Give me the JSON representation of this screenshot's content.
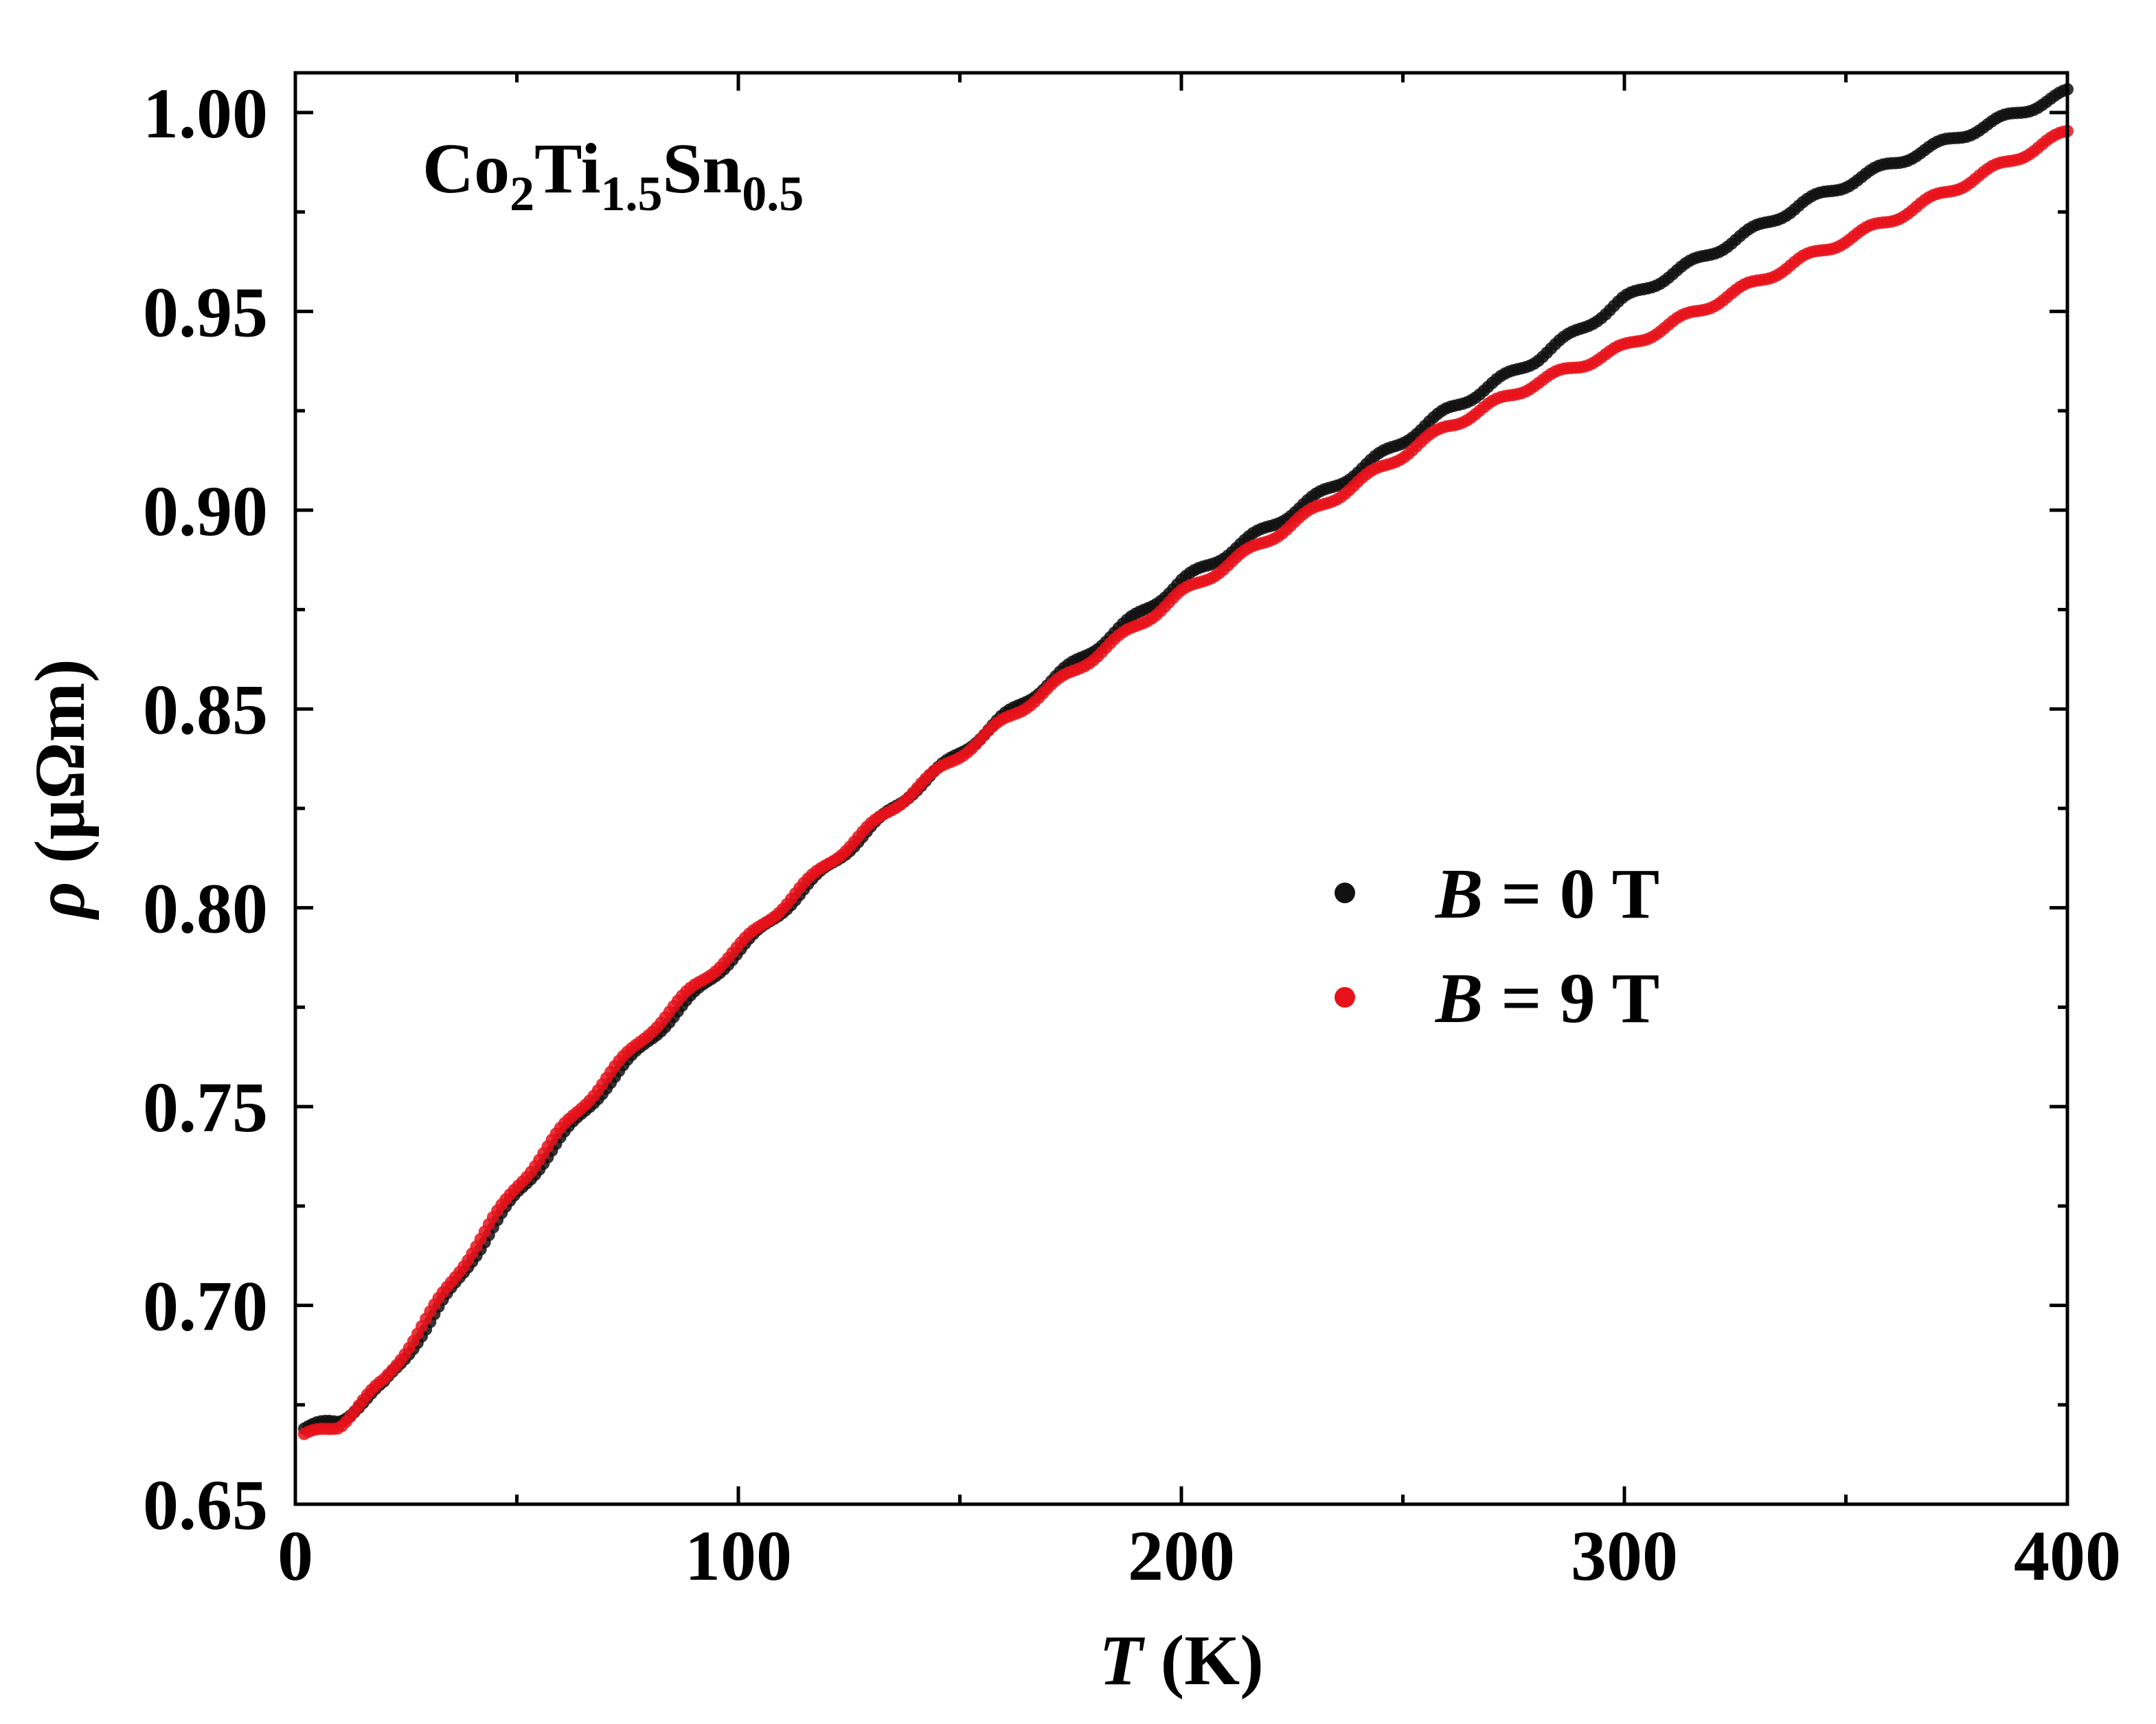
{
  "chart_data": {
    "type": "scatter",
    "title": "",
    "annotation": {
      "base": "Co",
      "sub1": "2",
      "el2": "Ti",
      "sub2": "1.5",
      "el3": "Sn",
      "sub3": "0.5"
    },
    "xlabel": {
      "symbol": "T",
      "unit": " (K)"
    },
    "ylabel": {
      "symbol": "ρ",
      "unit": " (μΩm)"
    },
    "xlim": [
      0,
      400
    ],
    "ylim": [
      0.65,
      1.01
    ],
    "xticks": [
      0,
      100,
      200,
      300,
      400
    ],
    "xtick_labels": [
      "0",
      "100",
      "200",
      "300",
      "400"
    ],
    "yticks": [
      0.65,
      0.7,
      0.75,
      0.8,
      0.85,
      0.9,
      0.95,
      1.0
    ],
    "ytick_labels": [
      "0.65",
      "0.70",
      "0.75",
      "0.80",
      "0.85",
      "0.90",
      "0.95",
      "1.00"
    ],
    "legend_position": "center-right",
    "series": [
      {
        "name": "B = 0 T",
        "legend_symbol": "B",
        "legend_rest": " = 0 T",
        "color": "#111111",
        "x": [
          2,
          10,
          20,
          30,
          40,
          50,
          60,
          70,
          80,
          90,
          100,
          120,
          140,
          160,
          180,
          200,
          220,
          240,
          260,
          280,
          300,
          320,
          340,
          360,
          380,
          400
        ],
        "y": [
          0.669,
          0.671,
          0.68,
          0.695,
          0.712,
          0.728,
          0.742,
          0.755,
          0.767,
          0.778,
          0.789,
          0.81,
          0.83,
          0.848,
          0.865,
          0.882,
          0.896,
          0.91,
          0.925,
          0.938,
          0.953,
          0.965,
          0.977,
          0.987,
          0.996,
          1.005
        ]
      },
      {
        "name": "B = 9 T",
        "legend_symbol": "B",
        "legend_rest": " = 9 T",
        "color": "#e8121a",
        "x": [
          2,
          10,
          20,
          30,
          40,
          50,
          60,
          70,
          80,
          90,
          100,
          120,
          140,
          160,
          180,
          200,
          220,
          240,
          260,
          280,
          300,
          320,
          340,
          360,
          380,
          400
        ],
        "y": [
          0.667,
          0.67,
          0.681,
          0.697,
          0.714,
          0.73,
          0.744,
          0.757,
          0.769,
          0.78,
          0.79,
          0.811,
          0.83,
          0.847,
          0.863,
          0.879,
          0.893,
          0.907,
          0.921,
          0.932,
          0.941,
          0.952,
          0.963,
          0.973,
          0.984,
          0.995
        ]
      }
    ]
  }
}
